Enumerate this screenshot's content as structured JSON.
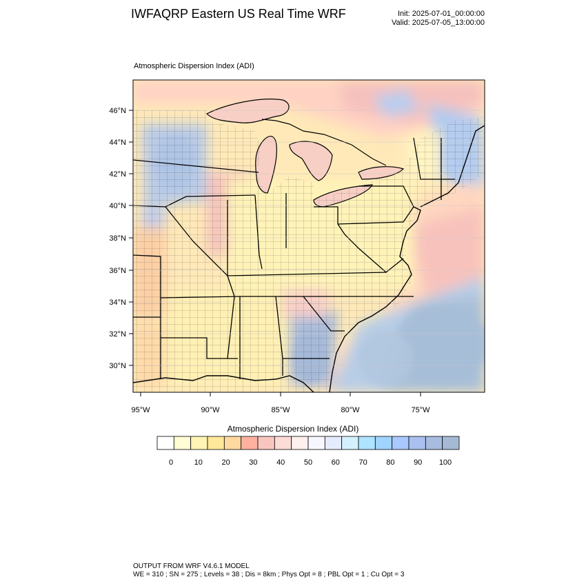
{
  "header": {
    "title": "IWFAQRP Eastern US Real Time WRF",
    "init": "Init: 2025-07-01_00:00:00",
    "valid": "Valid: 2025-07-05_13:00:00"
  },
  "map": {
    "label": "Atmospheric Dispersion Index   (ADI)",
    "lat_labels": [
      "46°N",
      "44°N",
      "42°N",
      "40°N",
      "38°N",
      "36°N",
      "34°N",
      "32°N",
      "30°N"
    ],
    "lon_labels": [
      "95°W",
      "90°W",
      "85°W",
      "80°W",
      "75°W"
    ]
  },
  "colorbar": {
    "title": "Atmospheric Dispersion Index  (ADI)",
    "tick_labels": [
      "0",
      "10",
      "20",
      "30",
      "40",
      "50",
      "60",
      "70",
      "80",
      "90",
      "100"
    ],
    "colors": [
      "#ffffff",
      "#fffcd6",
      "#fff3b5",
      "#ffe89a",
      "#ffd9a0",
      "#ffb1a0",
      "#f9c6bf",
      "#fcdcd7",
      "#fff0ee",
      "#f7f7ff",
      "#e6ecff",
      "#d4f0ff",
      "#aee4ff",
      "#a0d4ff",
      "#a8c8ff",
      "#a9c0f0",
      "#a8bce0",
      "#a5b9d4"
    ]
  },
  "footer": {
    "line1": "OUTPUT FROM WRF V4.6.1 MODEL",
    "line2": "WE = 310 ; SN = 275 ; Levels = 38 ; Dis = 8km ; Phys Opt = 8 ; PBL Opt = 1 ; Cu Opt = 3"
  }
}
